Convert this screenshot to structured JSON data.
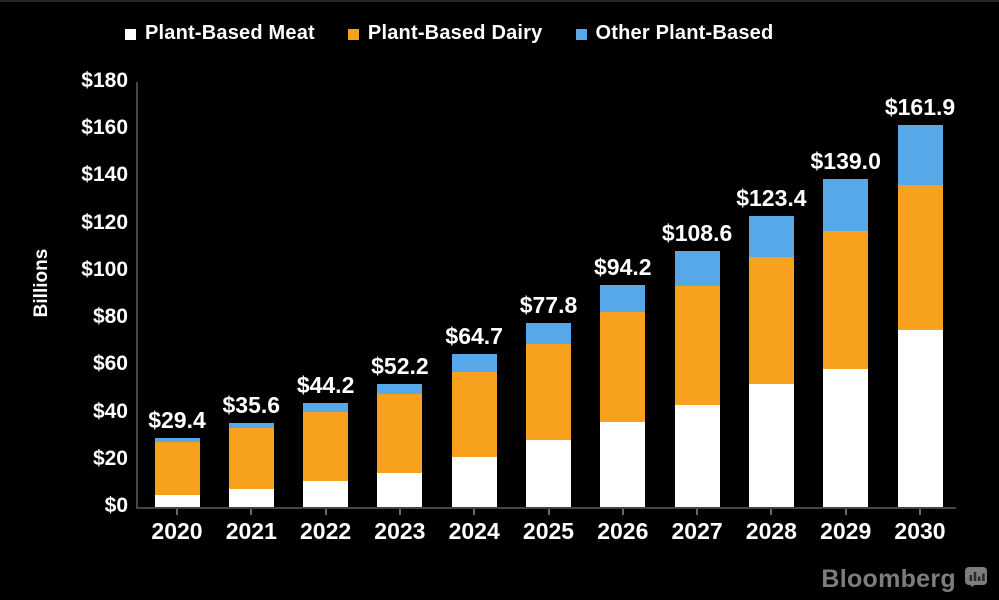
{
  "page": {
    "background": "#000000"
  },
  "legend": {
    "items": [
      {
        "label": "Plant-Based Meat",
        "color": "#FFFFFF"
      },
      {
        "label": "Plant-Based Dairy",
        "color": "#F7A11F"
      },
      {
        "label": "Other Plant-Based",
        "color": "#57A8E8"
      }
    ]
  },
  "chart_data": {
    "type": "bar",
    "stacked": true,
    "title": "",
    "xlabel": "",
    "ylabel": "Billions",
    "ylim": [
      0,
      180
    ],
    "grid": false,
    "legend_position": "top",
    "categories": [
      "2020",
      "2021",
      "2022",
      "2023",
      "2024",
      "2025",
      "2026",
      "2027",
      "2028",
      "2029",
      "2030"
    ],
    "series": [
      {
        "name": "Plant-Based Meat",
        "color": "#FFFFFF",
        "values": [
          5.0,
          7.7,
          10.9,
          14.2,
          21.3,
          28.5,
          35.9,
          43.4,
          51.9,
          58.5,
          74.8
        ]
      },
      {
        "name": "Plant-Based Dairy",
        "color": "#F7A11F",
        "values": [
          22.5,
          25.7,
          29.4,
          33.5,
          36.0,
          40.5,
          46.6,
          50.1,
          53.8,
          58.5,
          61.4
        ]
      },
      {
        "name": "Other Plant-Based",
        "color": "#57A8E8",
        "values": [
          1.9,
          2.2,
          3.9,
          4.5,
          7.4,
          8.8,
          11.7,
          15.1,
          17.7,
          22.0,
          25.7
        ]
      }
    ],
    "totals": [
      29.4,
      35.6,
      44.2,
      52.2,
      64.7,
      77.8,
      94.2,
      108.6,
      123.4,
      139.0,
      161.9
    ],
    "total_labels": [
      "$29.4",
      "$35.6",
      "$44.2",
      "$52.2",
      "$64.7",
      "$77.8",
      "$94.2",
      "$108.6",
      "$123.4",
      "$139.0",
      "$161.9"
    ],
    "y_ticks": [
      {
        "label": "$180",
        "value": 180
      },
      {
        "label": "$160",
        "value": 160
      },
      {
        "label": "$140",
        "value": 140
      },
      {
        "label": "$120",
        "value": 120
      },
      {
        "label": "$100",
        "value": 100
      },
      {
        "label": "$80",
        "value": 80
      },
      {
        "label": "$60",
        "value": 60
      },
      {
        "label": "$40",
        "value": 40
      },
      {
        "label": "$20",
        "value": 20
      },
      {
        "label": "$0",
        "value": 0
      }
    ]
  },
  "branding": {
    "logo": "Bloomberg",
    "logo_color": "#7D7D7D"
  }
}
